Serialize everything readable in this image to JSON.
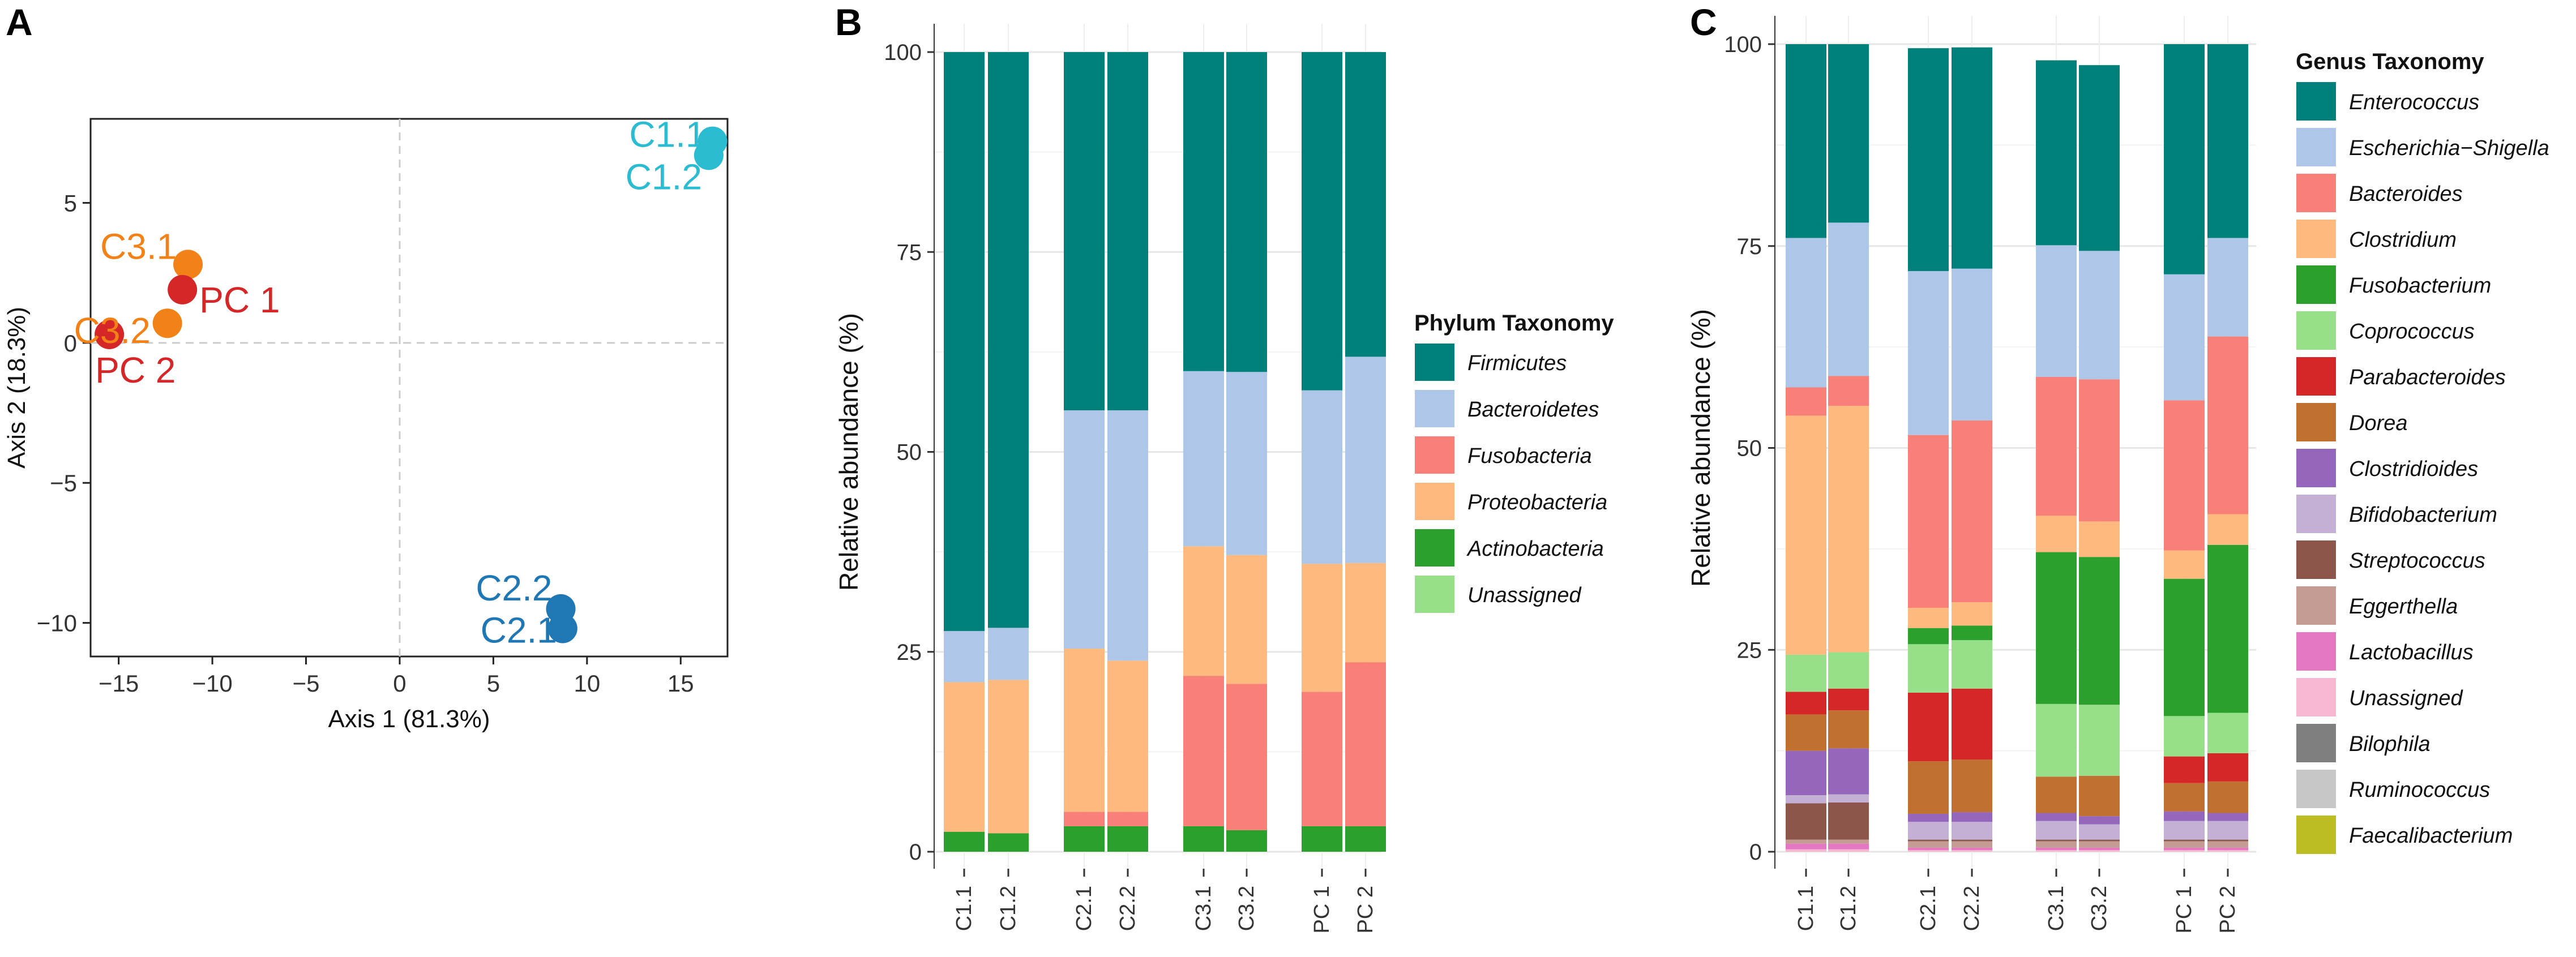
{
  "chart_data": [
    {
      "panel": "A",
      "type": "scatter",
      "xlabel": "Axis 1 (81.3%)",
      "ylabel": "Axis 2 (18.3%)",
      "xlim": [
        -16.5,
        17.5
      ],
      "ylim": [
        -11.2,
        8.0
      ],
      "xticks": [
        -15,
        -10,
        -5,
        0,
        5,
        10,
        15
      ],
      "yticks": [
        5,
        0,
        -5,
        -10
      ],
      "points": [
        {
          "label": "C1.1",
          "x": 16.7,
          "y": 7.2,
          "color": "#2bbcd1"
        },
        {
          "label": "C1.2",
          "x": 16.5,
          "y": 6.7,
          "color": "#2bbcd1"
        },
        {
          "label": "C3.1",
          "x": -11.3,
          "y": 2.8,
          "color": "#f28218"
        },
        {
          "label": "C3.2",
          "x": -12.4,
          "y": 0.7,
          "color": "#f28218"
        },
        {
          "label": "PC 1",
          "x": -11.6,
          "y": 1.9,
          "color": "#d62728"
        },
        {
          "label": "PC 2",
          "x": -15.5,
          "y": 0.3,
          "color": "#d62728"
        },
        {
          "label": "C2.2",
          "x": 8.6,
          "y": -9.5,
          "color": "#1f77b4"
        },
        {
          "label": "C2.1",
          "x": 8.7,
          "y": -10.2,
          "color": "#1f77b4"
        }
      ]
    },
    {
      "panel": "B",
      "type": "bar",
      "stacked": true,
      "ylabel": "Relative abundance (%)",
      "ylim": [
        0,
        100
      ],
      "yticks": [
        0,
        25,
        50,
        75,
        100
      ],
      "categories": [
        "C1.1",
        "C1.2",
        "C2.1",
        "C2.2",
        "C3.1",
        "C3.2",
        "PC 1",
        "PC 2"
      ],
      "legend_title": "Phylum Taxonomy",
      "series": [
        {
          "name": "Actinobacteria",
          "color": "#2ca02c",
          "values": [
            2.5,
            2.3,
            3.2,
            3.2,
            3.2,
            2.7,
            3.2,
            3.2
          ]
        },
        {
          "name": "Fusobacteria",
          "color": "#f88078",
          "values": [
            0,
            0,
            1.8,
            1.8,
            18.8,
            18.3,
            16.8,
            20.5
          ]
        },
        {
          "name": "Proteobacteria",
          "color": "#fdb97e",
          "values": [
            18.7,
            19.2,
            20.4,
            18.9,
            16.2,
            16.1,
            16.0,
            12.4
          ]
        },
        {
          "name": "Bacteroidetes",
          "color": "#aec7e8",
          "values": [
            6.4,
            6.5,
            29.8,
            31.3,
            21.9,
            22.9,
            21.7,
            25.8
          ]
        },
        {
          "name": "Firmicutes",
          "color": "#00807a",
          "values": [
            72.4,
            72.0,
            44.8,
            44.8,
            39.9,
            40.0,
            42.3,
            38.1
          ]
        }
      ],
      "legend_order": [
        "Firmicutes",
        "Bacteroidetes",
        "Fusobacteria",
        "Proteobacteria",
        "Actinobacteria",
        "Unassigned"
      ],
      "legend_colors": {
        "Unassigned": "#98df8a"
      }
    },
    {
      "panel": "C",
      "type": "bar",
      "stacked": true,
      "ylabel": "Relative abundance (%)",
      "ylim": [
        0,
        100
      ],
      "yticks": [
        0,
        25,
        50,
        75,
        100
      ],
      "categories": [
        "C1.1",
        "C1.2",
        "C2.1",
        "C2.2",
        "C3.1",
        "C3.2",
        "PC 1",
        "PC 2"
      ],
      "legend_title": "Genus Taxonomy",
      "series": [
        {
          "name": "Faecalibacterium",
          "color": "#bcbd22",
          "values": [
            0,
            0,
            0,
            0,
            0,
            0,
            0,
            0
          ]
        },
        {
          "name": "Ruminococcus",
          "color": "#c7c7c7",
          "values": [
            0,
            0,
            0,
            0,
            0,
            0,
            0,
            0
          ]
        },
        {
          "name": "Bilophila",
          "color": "#7f7f7f",
          "values": [
            0,
            0,
            0,
            0,
            0,
            0,
            0,
            0
          ]
        },
        {
          "name": "Unassigned",
          "color": "#f7b6d2",
          "values": [
            0.3,
            0.3,
            0.2,
            0.2,
            0.2,
            0.2,
            0.2,
            0.2
          ]
        },
        {
          "name": "Lactobacillus",
          "color": "#e377c2",
          "values": [
            0.7,
            0.7,
            0.3,
            0.3,
            0.3,
            0.3,
            0.3,
            0.3
          ]
        },
        {
          "name": "Eggerthella",
          "color": "#c49c94",
          "values": [
            0.5,
            0.5,
            0.8,
            0.8,
            0.8,
            0.8,
            0.8,
            0.8
          ]
        },
        {
          "name": "Streptococcus",
          "color": "#8c564b",
          "values": [
            4.5,
            4.6,
            0.2,
            0.2,
            0.2,
            0.2,
            0.2,
            0.2
          ]
        },
        {
          "name": "Bifidobacterium",
          "color": "#c5b0d5",
          "values": [
            1.0,
            1.0,
            2.2,
            2.2,
            2.3,
            1.9,
            2.3,
            2.3
          ]
        },
        {
          "name": "Clostridioides",
          "color": "#9467bd",
          "values": [
            5.5,
            5.7,
            1.0,
            1.2,
            1.0,
            1.0,
            1.2,
            1.0
          ]
        },
        {
          "name": "Dorea",
          "color": "#c0702f",
          "values": [
            4.5,
            4.7,
            6.5,
            6.5,
            4.5,
            5.0,
            3.5,
            3.9
          ]
        },
        {
          "name": "Parabacteroides",
          "color": "#d62728",
          "values": [
            2.8,
            2.7,
            8.5,
            8.8,
            0,
            0,
            3.3,
            3.5
          ]
        },
        {
          "name": "Coprococcus",
          "color": "#98df8a",
          "values": [
            4.6,
            4.5,
            6.0,
            6.0,
            9.0,
            8.8,
            5.0,
            5.0
          ]
        },
        {
          "name": "Fusobacterium",
          "color": "#2ca02c",
          "values": [
            0,
            0,
            2.0,
            1.8,
            18.8,
            18.3,
            17.0,
            20.8
          ]
        },
        {
          "name": "Clostridium",
          "color": "#fdb97e",
          "values": [
            29.6,
            30.5,
            2.5,
            2.9,
            4.5,
            4.4,
            3.5,
            3.8
          ]
        },
        {
          "name": "Bacteroides",
          "color": "#f88078",
          "values": [
            3.5,
            3.7,
            21.4,
            22.5,
            17.2,
            17.6,
            18.6,
            22.0
          ]
        },
        {
          "name": "Escherichia−Shigella",
          "color": "#aec7e8",
          "values": [
            18.5,
            19.0,
            20.3,
            18.8,
            16.3,
            15.9,
            15.6,
            12.2
          ]
        },
        {
          "name": "Enterococcus",
          "color": "#00807a",
          "values": [
            24.0,
            22.1,
            27.6,
            27.4,
            22.9,
            23.0,
            28.5,
            24.0
          ]
        }
      ],
      "legend_order": [
        "Enterococcus",
        "Escherichia−Shigella",
        "Bacteroides",
        "Clostridium",
        "Fusobacterium",
        "Coprococcus",
        "Parabacteroides",
        "Dorea",
        "Clostridioides",
        "Bifidobacterium",
        "Streptococcus",
        "Eggerthella",
        "Lactobacillus",
        "Unassigned",
        "Bilophila",
        "Ruminococcus",
        "Faecalibacterium"
      ]
    }
  ],
  "panel_letters": [
    "A",
    "B",
    "C"
  ]
}
